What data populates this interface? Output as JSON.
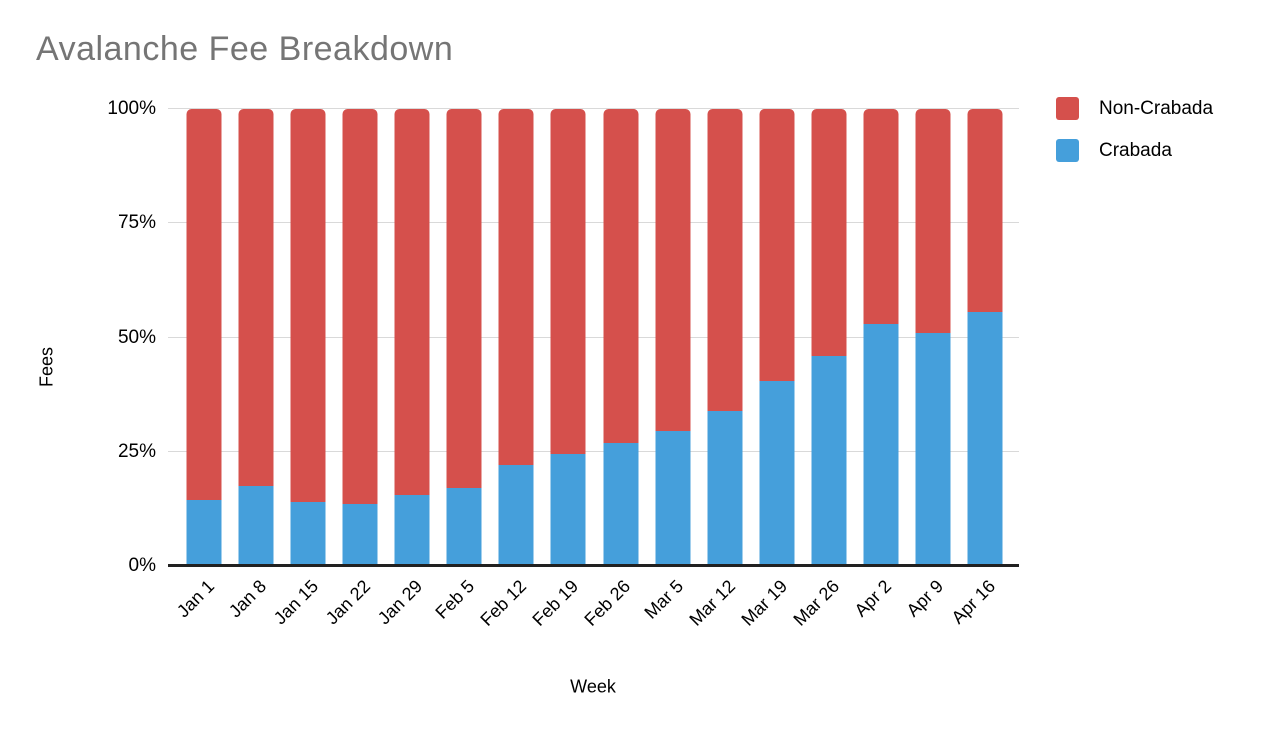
{
  "chart_data": {
    "type": "bar",
    "variant": "stacked-percent-column",
    "title": "Avalanche Fee Breakdown",
    "xlabel": "Week",
    "ylabel": "Fees",
    "categories": [
      "Jan 1",
      "Jan 8",
      "Jan 15",
      "Jan 22",
      "Jan 29",
      "Feb 5",
      "Feb 12",
      "Feb 19",
      "Feb 26",
      "Mar 5",
      "Mar 12",
      "Mar 19",
      "Mar 26",
      "Apr 2",
      "Apr 9",
      "Apr 16"
    ],
    "series": [
      {
        "name": "Non-Crabada",
        "color": "#d5504c",
        "values": [
          85.5,
          82.5,
          86,
          86.5,
          84.5,
          83,
          78,
          75.5,
          73,
          70.5,
          66,
          59.5,
          54,
          47,
          49,
          44.5
        ]
      },
      {
        "name": "Crabada",
        "color": "#459fdb",
        "values": [
          14.5,
          17.5,
          14,
          13.5,
          15.5,
          17,
          22,
          24.5,
          27,
          29.5,
          34,
          40.5,
          46,
          53,
          51,
          55.5
        ]
      }
    ],
    "stack_order_bottom_to_top": [
      "Crabada",
      "Non-Crabada"
    ],
    "y_ticks": [
      "0%",
      "25%",
      "50%",
      "75%",
      "100%"
    ],
    "ylim": [
      0,
      100
    ],
    "grid": true,
    "legend_position": "top-right"
  },
  "colors": {
    "title_text": "#757575",
    "tick_text": "#000000",
    "gridline": "#d9d9d9",
    "axis_baseline": "#212121",
    "background": "#ffffff",
    "non_crabada": "#d5504c",
    "crabada": "#459fdb"
  }
}
